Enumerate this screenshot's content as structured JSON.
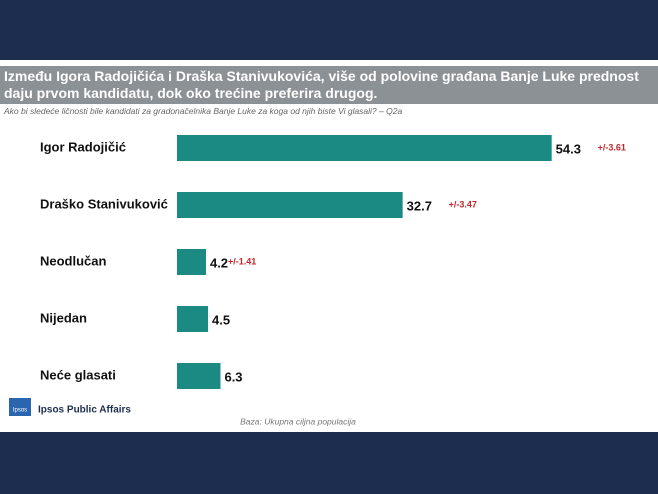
{
  "chart_data": {
    "type": "bar",
    "orientation": "horizontal",
    "title": "Između Igora Radojičića i Draška Stanivukovića, više od polovine građana Banje Luke prednost daju prvom kandidatu, dok oko trećine preferira drugog.",
    "subtitle": "Ako bi sledeće ličnosti bile kandidati za gradonačelnika Banje Luke za koga od njih biste Vi glasali? – Q2a",
    "categories": [
      "Igor Radojičić",
      "Draško Stanivuković",
      "Neodlučan",
      "Nijedan",
      "Neće glasati"
    ],
    "values": [
      54.3,
      32.7,
      4.2,
      4.5,
      6.3
    ],
    "margins": [
      "+/-3.61",
      "+/-3.47",
      "+/-1.41",
      null,
      null
    ],
    "color": "#1a8a82",
    "xlim": [
      0,
      60
    ],
    "logo": "Ipsos",
    "brand": "Ipsos Public Affairs",
    "footnote": "Baza: Ukupna ciljna populacija"
  }
}
